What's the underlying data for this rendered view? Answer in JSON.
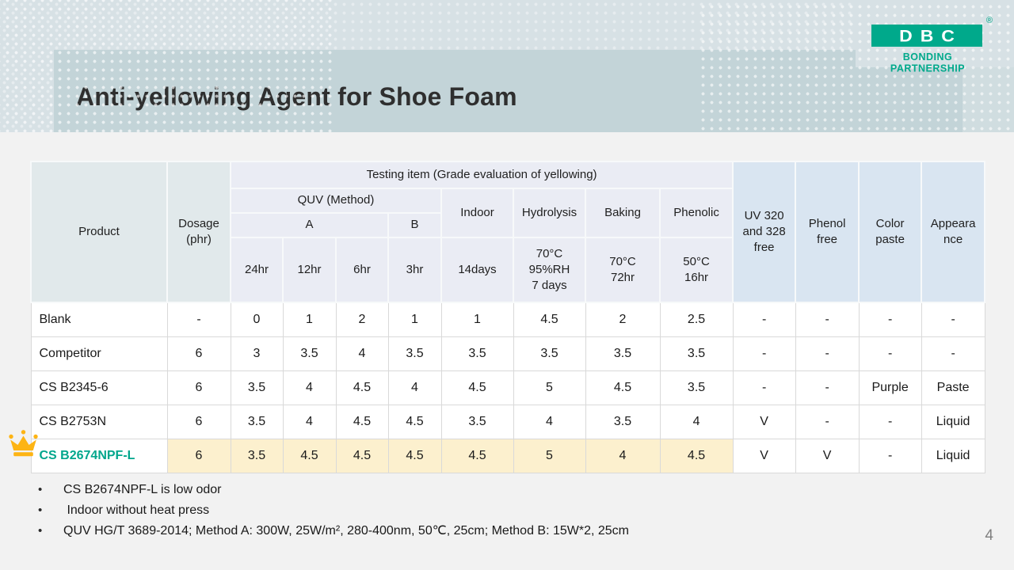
{
  "slide": {
    "title": "Anti-yellowing Agent for Shoe Foam",
    "page_number": "4"
  },
  "logo": {
    "text": "DBC",
    "registered": "®",
    "tagline": "BONDING PARTNERSHIP"
  },
  "colors": {
    "logo_green": "#00a98b",
    "banner_teal": "#c3d4d8",
    "top_band": "#d7e1e5",
    "header_lavender": "#eaecf4",
    "header_green_gray": "#e1e9eb",
    "header_blue": "#d9e5f1",
    "highlight_row_yellow": "#fcf0ce",
    "highlight_product_teal": "#00a68c",
    "crown_gold": "#fdb414"
  },
  "table": {
    "header": {
      "product": "Product",
      "dosage": "Dosage (phr)",
      "testing_item": "Testing item (Grade evaluation of yellowing)",
      "quv": "QUV (Method)",
      "method_a": "A",
      "method_b": "B",
      "indoor": "Indoor",
      "hydrolysis": "Hydrolysis",
      "baking": "Baking",
      "phenolic": "Phenolic",
      "t24": "24hr",
      "t12": "12hr",
      "t6": "6hr",
      "t3": "3hr",
      "t14days": "14days",
      "hydrolysis_cond": "70°C\n95%RH\n7 days",
      "baking_cond": "70°C\n72hr",
      "phenolic_cond": "50°C\n16hr",
      "uv_free": "UV 320\nand 328\nfree",
      "phenol_free": "Phenol\nfree",
      "color_paste": "Color\npaste",
      "appearance": "Appeara\nnce"
    },
    "rows": [
      {
        "product": "Blank",
        "highlight": false,
        "cells": [
          "-",
          "0",
          "1",
          "2",
          "1",
          "1",
          "4.5",
          "2",
          "2.5",
          "-",
          "-",
          "-",
          "-"
        ]
      },
      {
        "product": "Competitor",
        "highlight": false,
        "cells": [
          "6",
          "3",
          "3.5",
          "4",
          "3.5",
          "3.5",
          "3.5",
          "3.5",
          "3.5",
          "-",
          "-",
          "-",
          "-"
        ]
      },
      {
        "product": "CS B2345-6",
        "highlight": false,
        "cells": [
          "6",
          "3.5",
          "4",
          "4.5",
          "4",
          "4.5",
          "5",
          "4.5",
          "3.5",
          "-",
          "-",
          "Purple",
          "Paste"
        ]
      },
      {
        "product": "CS B2753N",
        "highlight": false,
        "cells": [
          "6",
          "3.5",
          "4",
          "4.5",
          "4.5",
          "3.5",
          "4",
          "3.5",
          "4",
          "V",
          "-",
          "-",
          "Liquid"
        ]
      },
      {
        "product": "CS B2674NPF-L",
        "highlight": true,
        "cells": [
          "6",
          "3.5",
          "4.5",
          "4.5",
          "4.5",
          "4.5",
          "5",
          "4",
          "4.5",
          "V",
          "V",
          "-",
          "Liquid"
        ]
      }
    ]
  },
  "bullets": [
    "CS B2674NPF-L is low odor",
    " Indoor without heat press",
    "QUV HG/T 3689-2014; Method A: 300W, 25W/m², 280-400nm, 50℃, 25cm; Method B: 15W*2, 25cm"
  ]
}
